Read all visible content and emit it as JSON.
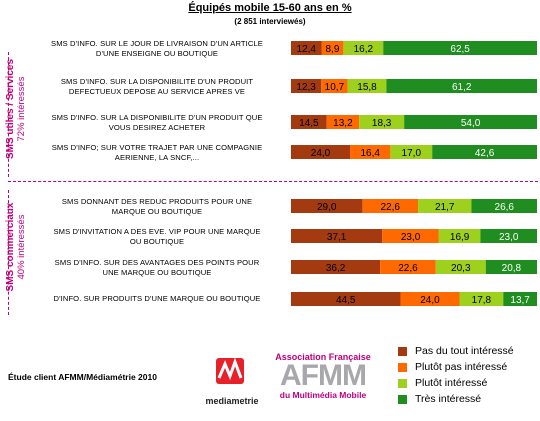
{
  "title": "Équipés mobile 15-60 ans en %",
  "subtitle": "(2 851 interviewés)",
  "groups": [
    {
      "label_line1": "SMS utiles / Services",
      "label_line2": "72% intéressés"
    },
    {
      "label_line1": "SMS commerciaux",
      "label_line2": "40% intéressés"
    }
  ],
  "colors": {
    "pas_du_tout": "#a33a10",
    "plutot_pas": "#ff6a00",
    "plutot": "#9ed01e",
    "tres": "#1f8d1f"
  },
  "legend": [
    {
      "label": "Pas du tout intéressé",
      "color": "#a33a10"
    },
    {
      "label": "Plutôt pas intéressé",
      "color": "#ff6a00"
    },
    {
      "label": "Plutôt intéressé",
      "color": "#9ed01e"
    },
    {
      "label": "Très intéressé",
      "color": "#1f8d1f"
    }
  ],
  "footer": {
    "study": "Étude client AFMM/Médiamétrie 2010",
    "logo_mediametrie": "mediametrie",
    "logo_afmm_top": "Association Française",
    "logo_afmm_main": "AFMM",
    "logo_afmm_bottom": "du Multimédia Mobile"
  },
  "chart_data": {
    "type": "bar",
    "orientation": "horizontal-stacked",
    "xlim": [
      0,
      100
    ],
    "series": [
      {
        "name": "Pas du tout intéressé",
        "values": [
          "12,4",
          "12,3",
          "14,5",
          "24,0",
          "29,0",
          "37,1",
          "36,2",
          "44,5"
        ]
      },
      {
        "name": "Plutôt pas intéressé",
        "values": [
          "8,9",
          "10,7",
          "13,2",
          "16,4",
          "22,6",
          "23,0",
          "22,6",
          "24,0"
        ]
      },
      {
        "name": "Plutôt intéressé",
        "values": [
          "16,2",
          "15,8",
          "18,3",
          "17,0",
          "21,7",
          "16,9",
          "20,3",
          "17,8"
        ]
      },
      {
        "name": "Très intéressé",
        "values": [
          "62,5",
          "61,2",
          "54,0",
          "42,6",
          "26,6",
          "23,0",
          "20,8",
          "13,7"
        ]
      }
    ],
    "categories": [
      {
        "line1": "SMS D'INFO. SUR LE JOUR DE LIVRAISON D'UN ARTICLE",
        "line2": "D'UNE ENSEIGNE OU BOUTIQUE"
      },
      {
        "line1": "SMS D'INFO. SUR LA DISPONIBILITE D'UN PRODUIT",
        "line2": "DEFECTUEUX DEPOSE AU SERVICE APRES VE"
      },
      {
        "line1": "SMS D'INFO. SUR LA DISPONIBILITE D'UN PRODUIT QUE",
        "line2": "VOUS DESIREZ ACHETER"
      },
      {
        "line1": "SMS D'INFO; SUR VOTRE TRAJET PAR UNE COMPAGNIE",
        "line2": "AERIENNE, LA SNCF,..."
      },
      {
        "line1": "SMS DONNANT DES REDUC PRODUITS POUR UNE",
        "line2": "MARQUE OU BOUTIQUE"
      },
      {
        "line1": "SMS D'INVITATION A DES EVE. VIP POUR UNE MARQUE",
        "line2": "OU BOUTIQUE"
      },
      {
        "line1": "SMS D'INFO. SUR DES AVANTAGES DES POINTS POUR",
        "line2": "UNE MARQUE OU BOUTIQUE"
      },
      {
        "line1": "D'INFO. SUR PRODUITS D'UNE MARQUE OU BOUTIQUE",
        "line2": ""
      }
    ]
  }
}
